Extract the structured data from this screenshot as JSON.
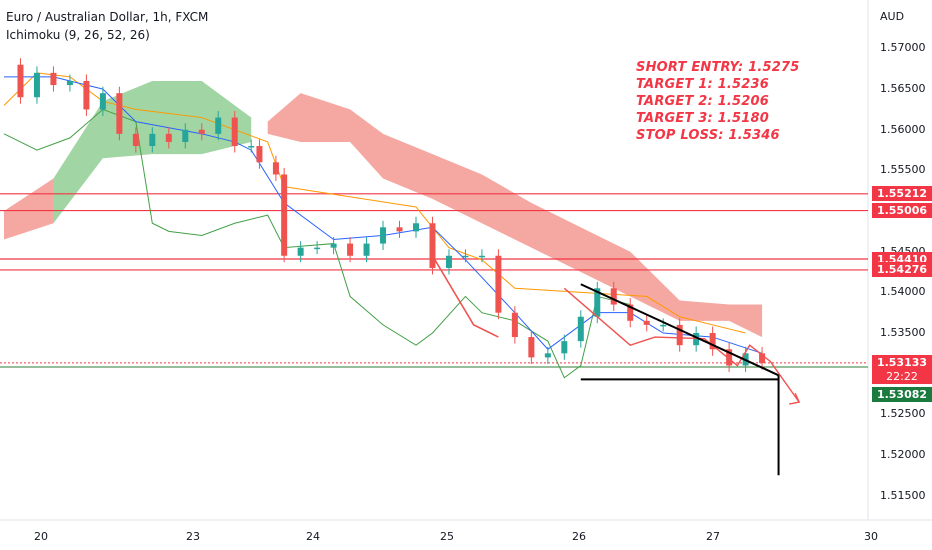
{
  "header": {
    "title": "Euro / Australian Dollar, 1h, FXCM",
    "indicator": "Ichimoku (9, 26, 52, 26)"
  },
  "currency_label": "AUD",
  "annotations": [
    "SHORT ENTRY: 1.5275",
    "TARGET 1: 1.5236",
    "TARGET 2: 1.5206",
    "TARGET 3: 1.5180",
    "STOP LOSS: 1.5346"
  ],
  "colors": {
    "up": "#26a69a",
    "down": "#ef5350",
    "annotation": "#f23645",
    "cloud_bull": "#81c784",
    "cloud_bear": "#f28b82",
    "tenkan": "#2962ff",
    "kijun": "#ff9800",
    "chikou": "#43a047",
    "level": "#f23645",
    "support": "#2e7d32"
  },
  "chart_data": {
    "type": "candlestick",
    "symbol": "EURAUD",
    "timeframe": "1h",
    "x_ticks": [
      "20",
      "23",
      "24",
      "25",
      "26",
      "27",
      "30"
    ],
    "y_ticks": [
      "1.57000",
      "1.56500",
      "1.56000",
      "1.55500",
      "1.55000",
      "1.54500",
      "1.54000",
      "1.53500",
      "1.53000",
      "1.52500",
      "1.52000",
      "1.51500"
    ],
    "ylim": [
      1.512,
      1.5735
    ],
    "price_levels": [
      {
        "label": "1.55212",
        "value": 1.55212,
        "color": "#f23645"
      },
      {
        "label": "1.55006",
        "value": 1.55006,
        "color": "#f23645"
      },
      {
        "label": "1.54410",
        "value": 1.5441,
        "color": "#f23645"
      },
      {
        "label": "1.54276",
        "value": 1.54276,
        "color": "#f23645"
      },
      {
        "label": "1.53133",
        "value": 1.53133,
        "color": "#f23645"
      },
      {
        "label": "1.53082",
        "value": 1.53082,
        "color": "#1b7a3e"
      }
    ],
    "countdown": "22:22",
    "price_path": [
      [
        0,
        1.568
      ],
      [
        0.04,
        1.564
      ],
      [
        0.08,
        1.567
      ],
      [
        0.12,
        1.5655
      ],
      [
        0.16,
        1.566
      ],
      [
        0.2,
        1.5625
      ],
      [
        0.24,
        1.5645
      ],
      [
        0.28,
        1.5595
      ],
      [
        0.32,
        1.558
      ],
      [
        0.36,
        1.5595
      ],
      [
        0.4,
        1.5585
      ],
      [
        0.44,
        1.56
      ],
      [
        0.48,
        1.5595
      ],
      [
        0.52,
        1.5615
      ],
      [
        0.56,
        1.558
      ],
      [
        0.6,
        1.558
      ],
      [
        0.62,
        1.556
      ],
      [
        0.66,
        1.5545
      ],
      [
        0.68,
        1.5445
      ],
      [
        0.72,
        1.5455
      ],
      [
        0.76,
        1.5455
      ],
      [
        0.8,
        1.546
      ],
      [
        0.84,
        1.5445
      ],
      [
        0.88,
        1.546
      ],
      [
        0.92,
        1.548
      ],
      [
        0.96,
        1.5475
      ],
      [
        1.0,
        1.5485
      ],
      [
        1.04,
        1.543
      ],
      [
        1.08,
        1.5445
      ],
      [
        1.12,
        1.5445
      ],
      [
        1.16,
        1.5445
      ],
      [
        1.2,
        1.5375
      ],
      [
        1.24,
        1.5345
      ],
      [
        1.28,
        1.532
      ],
      [
        1.32,
        1.5325
      ],
      [
        1.36,
        1.534
      ],
      [
        1.4,
        1.537
      ],
      [
        1.44,
        1.5405
      ],
      [
        1.48,
        1.5385
      ],
      [
        1.52,
        1.5365
      ],
      [
        1.56,
        1.536
      ],
      [
        1.6,
        1.536
      ],
      [
        1.64,
        1.5335
      ],
      [
        1.68,
        1.535
      ],
      [
        1.72,
        1.533
      ],
      [
        1.76,
        1.531
      ],
      [
        1.8,
        1.5325
      ],
      [
        1.84,
        1.5313
      ]
    ],
    "tenkan": [
      [
        0,
        1.5665
      ],
      [
        0.12,
        1.5665
      ],
      [
        0.24,
        1.565
      ],
      [
        0.32,
        1.561
      ],
      [
        0.48,
        1.5595
      ],
      [
        0.56,
        1.5585
      ],
      [
        0.6,
        1.5575
      ],
      [
        0.68,
        1.551
      ],
      [
        0.8,
        1.5465
      ],
      [
        0.92,
        1.547
      ],
      [
        1.04,
        1.548
      ],
      [
        1.12,
        1.544
      ],
      [
        1.24,
        1.5375
      ],
      [
        1.32,
        1.533
      ],
      [
        1.44,
        1.5375
      ],
      [
        1.52,
        1.5375
      ],
      [
        1.6,
        1.535
      ],
      [
        1.72,
        1.5345
      ],
      [
        1.84,
        1.5325
      ]
    ],
    "kijun": [
      [
        0,
        1.563
      ],
      [
        0.08,
        1.567
      ],
      [
        0.16,
        1.5665
      ],
      [
        0.24,
        1.5635
      ],
      [
        0.32,
        1.5625
      ],
      [
        0.48,
        1.5615
      ],
      [
        0.64,
        1.5585
      ],
      [
        0.68,
        1.553
      ],
      [
        1.0,
        1.5505
      ],
      [
        1.08,
        1.5455
      ],
      [
        1.16,
        1.544
      ],
      [
        1.24,
        1.5405
      ],
      [
        1.56,
        1.5395
      ],
      [
        1.64,
        1.537
      ],
      [
        1.76,
        1.5355
      ],
      [
        1.8,
        1.535
      ]
    ],
    "chikou": [
      [
        0,
        1.5595
      ],
      [
        0.08,
        1.5575
      ],
      [
        0.16,
        1.559
      ],
      [
        0.24,
        1.5625
      ],
      [
        0.32,
        1.561
      ],
      [
        0.36,
        1.5485
      ],
      [
        0.4,
        1.5475
      ],
      [
        0.48,
        1.547
      ],
      [
        0.56,
        1.5485
      ],
      [
        0.64,
        1.5495
      ],
      [
        0.68,
        1.5455
      ],
      [
        0.8,
        1.546
      ],
      [
        0.84,
        1.5395
      ],
      [
        0.92,
        1.536
      ],
      [
        1.0,
        1.5335
      ],
      [
        1.04,
        1.535
      ],
      [
        1.12,
        1.5395
      ],
      [
        1.16,
        1.5375
      ],
      [
        1.24,
        1.5365
      ],
      [
        1.32,
        1.534
      ],
      [
        1.36,
        1.5295
      ],
      [
        1.4,
        1.531
      ],
      [
        1.44,
        1.5395
      ],
      [
        1.52,
        1.5385
      ]
    ],
    "cloud": [
      [
        0,
        1.5465,
        1.55,
        "bear"
      ],
      [
        0.12,
        1.5485,
        1.554,
        "bull"
      ],
      [
        0.24,
        1.5565,
        1.5635,
        "bull"
      ],
      [
        0.36,
        1.557,
        1.566,
        "bull"
      ],
      [
        0.48,
        1.557,
        1.566,
        "bull"
      ],
      [
        0.56,
        1.558,
        1.563,
        "bull"
      ],
      [
        0.6,
        1.5585,
        1.5615,
        "bull"
      ],
      [
        0.64,
        1.5595,
        1.561,
        "bear"
      ],
      [
        0.72,
        1.5585,
        1.5645,
        "bear"
      ],
      [
        0.84,
        1.5585,
        1.5625,
        "bear"
      ],
      [
        0.92,
        1.554,
        1.5595,
        "bear"
      ],
      [
        1.04,
        1.5515,
        1.557,
        "bear"
      ],
      [
        1.16,
        1.5485,
        1.5545,
        "bear"
      ],
      [
        1.28,
        1.5455,
        1.551,
        "bear"
      ],
      [
        1.4,
        1.5425,
        1.548,
        "bear"
      ],
      [
        1.52,
        1.5395,
        1.545,
        "bear"
      ],
      [
        1.64,
        1.5365,
        1.539,
        "bear"
      ],
      [
        1.76,
        1.5365,
        1.5385,
        "bear"
      ],
      [
        1.84,
        1.5345,
        1.5385,
        "bear"
      ]
    ],
    "trend_lines": [
      {
        "from": [
          1.4,
          1.541
        ],
        "to": [
          1.88,
          1.5298
        ]
      },
      {
        "from": [
          1.4,
          1.5293
        ],
        "to": [
          1.88,
          1.5293
        ]
      }
    ]
  }
}
